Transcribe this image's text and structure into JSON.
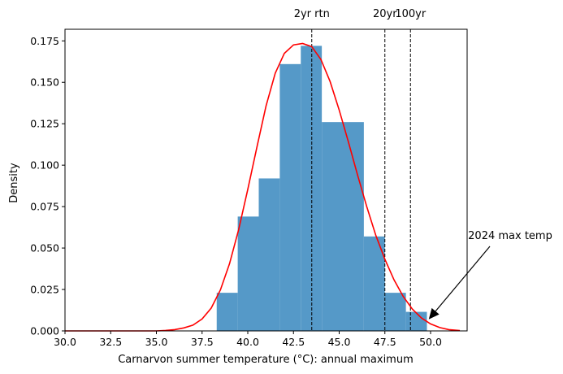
{
  "chart_data": {
    "type": "bar",
    "xlabel": "Carnarvon summer temperature (°C): annual maximum",
    "ylabel": "Density",
    "xlim": [
      30.0,
      52.0
    ],
    "ylim": [
      0.0,
      0.182
    ],
    "xticks": [
      "30.0",
      "32.5",
      "35.0",
      "37.5",
      "40.0",
      "42.5",
      "45.0",
      "47.5",
      "50.0"
    ],
    "xtick_values": [
      30.0,
      32.5,
      35.0,
      37.5,
      40.0,
      42.5,
      45.0,
      47.5,
      50.0
    ],
    "yticks": [
      "0.000",
      "0.025",
      "0.050",
      "0.075",
      "0.100",
      "0.125",
      "0.150",
      "0.175"
    ],
    "ytick_values": [
      0.0,
      0.025,
      0.05,
      0.075,
      0.1,
      0.125,
      0.15,
      0.175
    ],
    "grid": false,
    "histogram": {
      "color": "#5599c8",
      "bins": [
        {
          "x0": 38.3,
          "x1": 39.45,
          "density": 0.023
        },
        {
          "x0": 39.45,
          "x1": 40.6,
          "density": 0.069
        },
        {
          "x0": 40.6,
          "x1": 41.75,
          "density": 0.092
        },
        {
          "x0": 41.75,
          "x1": 42.9,
          "density": 0.161
        },
        {
          "x0": 42.9,
          "x1": 44.05,
          "density": 0.172
        },
        {
          "x0": 44.05,
          "x1": 46.35,
          "density": 0.126
        },
        {
          "x0": 46.35,
          "x1": 47.5,
          "density": 0.057
        },
        {
          "x0": 47.5,
          "x1": 48.65,
          "density": 0.023
        },
        {
          "x0": 48.65,
          "x1": 49.8,
          "density": 0.0115
        }
      ]
    },
    "fitted_curve": {
      "color": "#ff0000",
      "x": [
        30.0,
        31.0,
        32.0,
        33.0,
        34.0,
        35.0,
        35.5,
        36.0,
        36.5,
        37.0,
        37.5,
        38.0,
        38.5,
        39.0,
        39.5,
        40.0,
        40.5,
        41.0,
        41.5,
        42.0,
        42.5,
        43.0,
        43.5,
        44.0,
        44.5,
        45.0,
        45.5,
        46.0,
        46.5,
        47.0,
        47.5,
        48.0,
        48.5,
        49.0,
        49.5,
        50.0,
        50.5,
        51.0,
        51.6
      ],
      "y": [
        0.0,
        0.0,
        0.0,
        0.0,
        0.0,
        0.0,
        0.0003,
        0.0008,
        0.0018,
        0.0035,
        0.0072,
        0.0138,
        0.0247,
        0.0405,
        0.0612,
        0.0854,
        0.111,
        0.1358,
        0.1555,
        0.1675,
        0.1726,
        0.1734,
        0.1715,
        0.1638,
        0.1505,
        0.1333,
        0.1141,
        0.0943,
        0.0752,
        0.0578,
        0.0432,
        0.0308,
        0.0208,
        0.0132,
        0.0078,
        0.0042,
        0.002,
        0.0008,
        0.0002
      ]
    },
    "return_levels": [
      {
        "label": "2yr rtn",
        "x": 43.5
      },
      {
        "label": "20yr",
        "x": 47.5
      },
      {
        "label": "100yr",
        "x": 48.9
      }
    ],
    "annotation": {
      "text": "2024 max temp",
      "point_x": 49.9,
      "point_y": 0.007
    }
  }
}
